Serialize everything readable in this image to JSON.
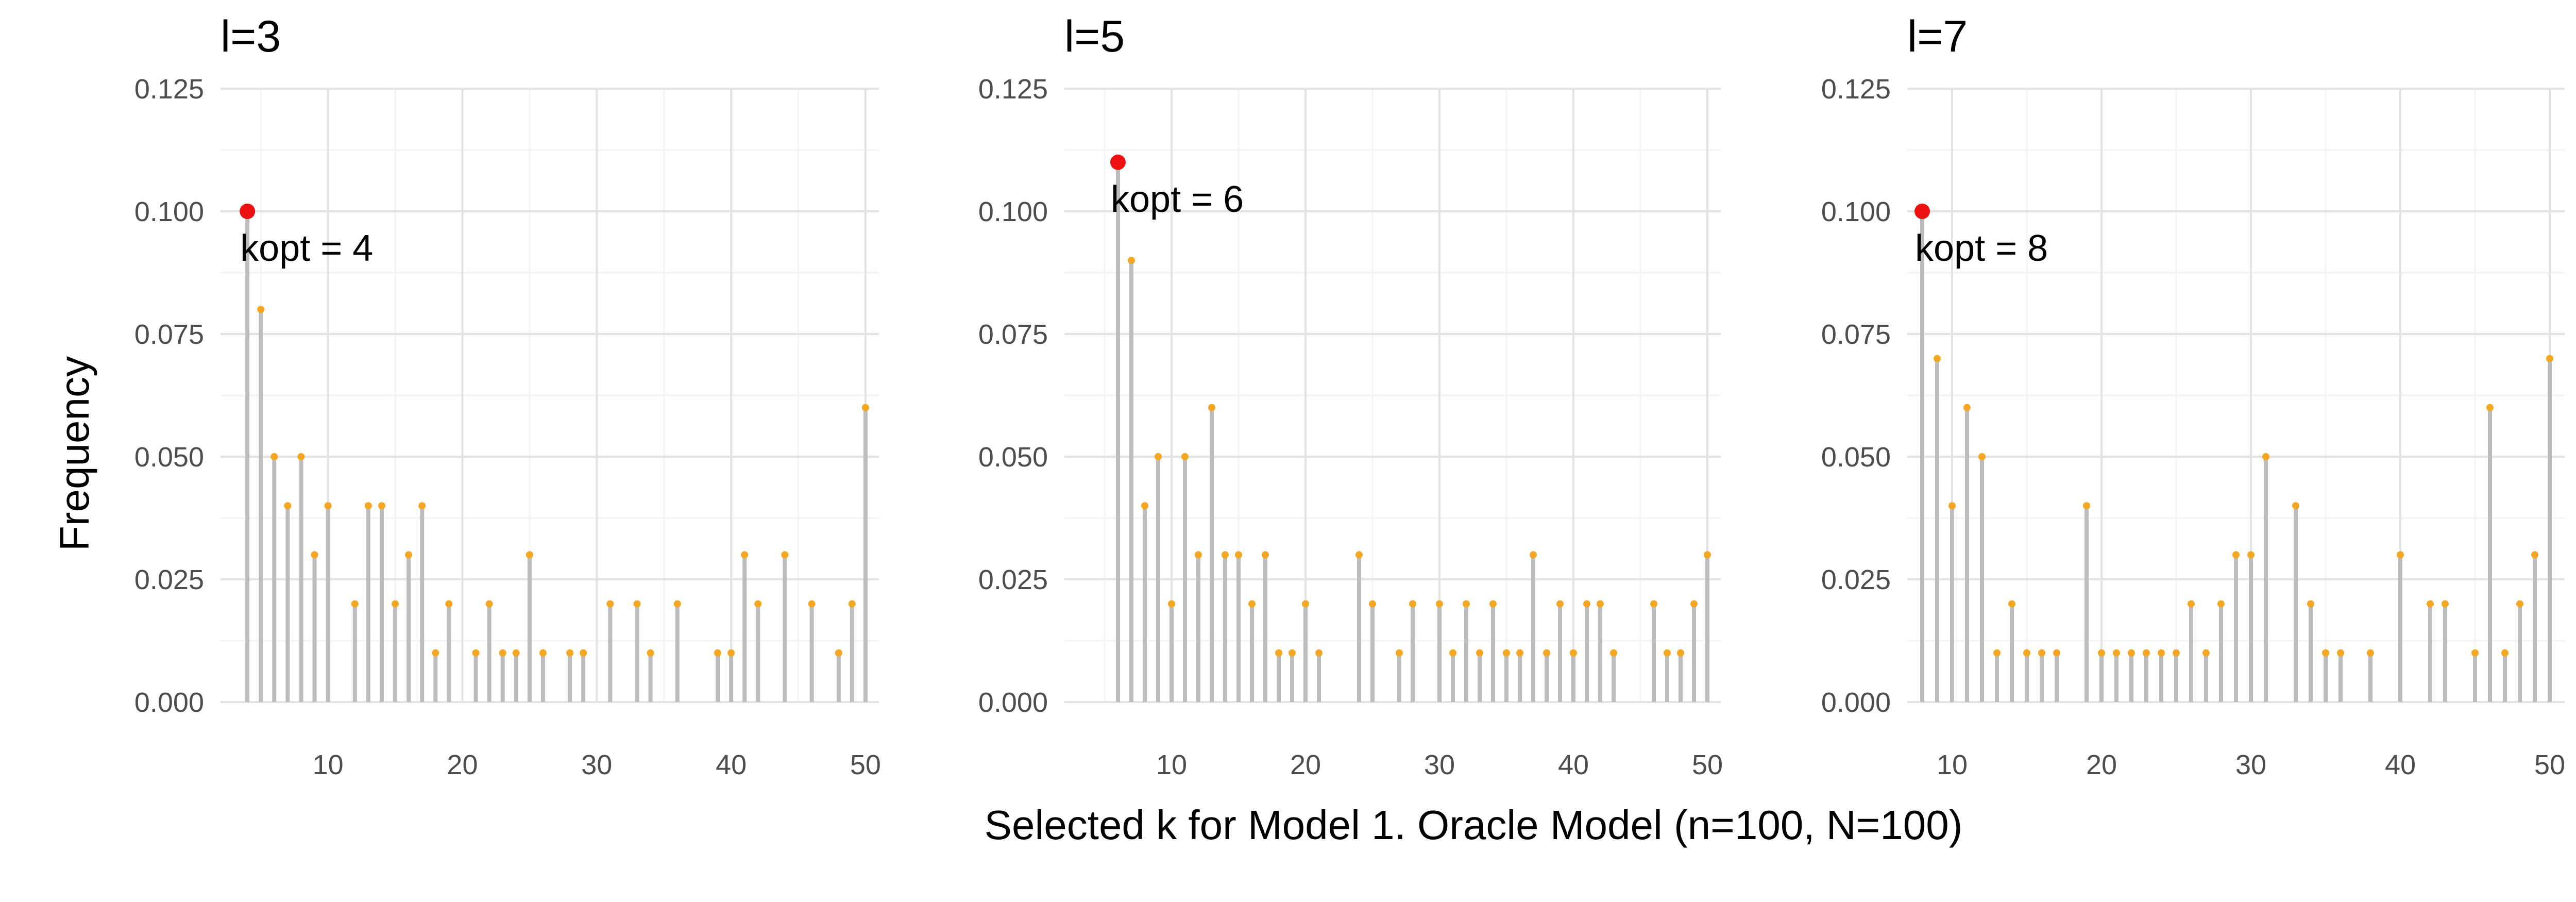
{
  "figure": {
    "xlabel": "Selected k for Model 1. Oracle Model (n=100, N=100)",
    "ylabel": "Frequency"
  },
  "colors": {
    "stem": "#bdbdbd",
    "point": "#f5a623",
    "highlight": "#ee1111",
    "grid_major": "#e3e3e3",
    "grid_minor": "#f3f3f3",
    "text": "#000000",
    "tick_text": "#4d4d4d"
  },
  "chart_data": [
    {
      "type": "lollipop",
      "title": "l=3",
      "xlim": [
        2,
        51
      ],
      "ylim": [
        0,
        0.125
      ],
      "xticks": [
        10,
        20,
        30,
        40,
        50
      ],
      "yticks": [
        0,
        0.025,
        0.05,
        0.075,
        0.1,
        0.125
      ],
      "ytick_labels": [
        "0.000",
        "0.025",
        "0.050",
        "0.075",
        "0.100",
        "0.125"
      ],
      "grid": true,
      "x": [
        4,
        5,
        6,
        7,
        8,
        9,
        10,
        12,
        13,
        14,
        15,
        16,
        17,
        18,
        19,
        21,
        22,
        23,
        24,
        25,
        26,
        28,
        29,
        31,
        33,
        34,
        36,
        39,
        40,
        41,
        42,
        44,
        46,
        48,
        49,
        50
      ],
      "y": [
        0.1,
        0.08,
        0.05,
        0.04,
        0.05,
        0.03,
        0.04,
        0.02,
        0.04,
        0.04,
        0.02,
        0.03,
        0.04,
        0.01,
        0.02,
        0.01,
        0.02,
        0.01,
        0.01,
        0.03,
        0.01,
        0.01,
        0.01,
        0.02,
        0.02,
        0.01,
        0.02,
        0.01,
        0.01,
        0.03,
        0.02,
        0.03,
        0.02,
        0.01,
        0.02,
        0.06
      ],
      "highlight": {
        "x": 4,
        "y": 0.1,
        "label": "kopt = 4"
      }
    },
    {
      "type": "lollipop",
      "title": "l=5",
      "xlim": [
        2,
        51
      ],
      "ylim": [
        0,
        0.125
      ],
      "xticks": [
        10,
        20,
        30,
        40,
        50
      ],
      "yticks": [
        0,
        0.025,
        0.05,
        0.075,
        0.1,
        0.125
      ],
      "ytick_labels": [
        "0.000",
        "0.025",
        "0.050",
        "0.075",
        "0.100",
        "0.125"
      ],
      "grid": true,
      "x": [
        6,
        7,
        8,
        9,
        10,
        11,
        12,
        13,
        14,
        15,
        16,
        17,
        18,
        19,
        20,
        21,
        24,
        25,
        27,
        28,
        30,
        31,
        32,
        33,
        34,
        35,
        36,
        37,
        38,
        39,
        40,
        41,
        42,
        43,
        46,
        47,
        48,
        49,
        50
      ],
      "y": [
        0.11,
        0.09,
        0.04,
        0.05,
        0.02,
        0.05,
        0.03,
        0.06,
        0.03,
        0.03,
        0.02,
        0.03,
        0.01,
        0.01,
        0.02,
        0.01,
        0.03,
        0.02,
        0.01,
        0.02,
        0.02,
        0.01,
        0.02,
        0.01,
        0.02,
        0.01,
        0.01,
        0.03,
        0.01,
        0.02,
        0.01,
        0.02,
        0.02,
        0.01,
        0.02,
        0.01,
        0.01,
        0.02,
        0.03
      ],
      "highlight": {
        "x": 6,
        "y": 0.11,
        "label": "kopt = 6"
      }
    },
    {
      "type": "lollipop",
      "title": "l=7",
      "xlim": [
        7,
        51
      ],
      "ylim": [
        0,
        0.125
      ],
      "xticks": [
        10,
        20,
        30,
        40,
        50
      ],
      "yticks": [
        0,
        0.025,
        0.05,
        0.075,
        0.1,
        0.125
      ],
      "ytick_labels": [
        "0.000",
        "0.025",
        "0.050",
        "0.075",
        "0.100",
        "0.125"
      ],
      "grid": true,
      "x": [
        8,
        9,
        10,
        11,
        12,
        13,
        14,
        15,
        16,
        17,
        19,
        20,
        21,
        22,
        23,
        24,
        25,
        26,
        27,
        28,
        29,
        30,
        31,
        33,
        34,
        35,
        36,
        38,
        40,
        42,
        43,
        45,
        46,
        47,
        48,
        49,
        50
      ],
      "y": [
        0.1,
        0.07,
        0.04,
        0.06,
        0.05,
        0.01,
        0.02,
        0.01,
        0.01,
        0.01,
        0.04,
        0.01,
        0.01,
        0.01,
        0.01,
        0.01,
        0.01,
        0.02,
        0.01,
        0.02,
        0.03,
        0.03,
        0.05,
        0.04,
        0.02,
        0.01,
        0.01,
        0.01,
        0.03,
        0.02,
        0.02,
        0.01,
        0.06,
        0.01,
        0.02,
        0.03,
        0.07
      ],
      "highlight": {
        "x": 8,
        "y": 0.1,
        "label": "kopt = 8"
      }
    }
  ]
}
